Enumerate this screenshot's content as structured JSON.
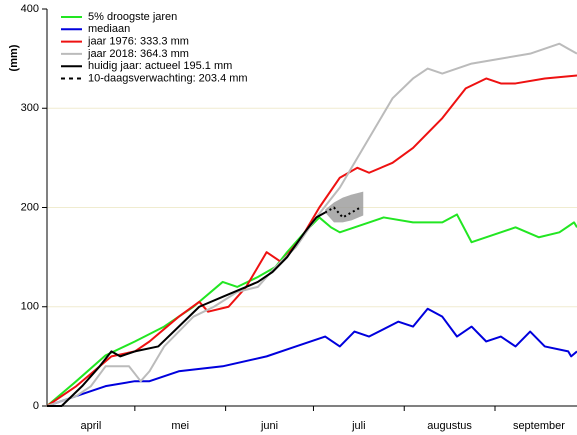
{
  "chart_data": {
    "type": "line",
    "y_label": "(mm)",
    "xlim": [
      0,
      181
    ],
    "ylim": [
      0,
      400
    ],
    "yticks": [
      0,
      100,
      200,
      300,
      400
    ],
    "xticks": [
      {
        "value": 15,
        "label": "april"
      },
      {
        "value": 45.5,
        "label": "mei"
      },
      {
        "value": 76,
        "label": "juni"
      },
      {
        "value": 106.5,
        "label": "juli"
      },
      {
        "value": 137.5,
        "label": "augustus"
      },
      {
        "value": 168,
        "label": "september"
      }
    ],
    "xtick_marks": [
      30,
      61,
      91,
      122,
      153
    ],
    "grid": true,
    "legend": "top-left",
    "series": [
      {
        "name": "5% droogste jaren",
        "color": "#22e622",
        "x": [
          0,
          10,
          20,
          30,
          40,
          50,
          60,
          65,
          72,
          78,
          82,
          88,
          93,
          97,
          100,
          110,
          115,
          125,
          135,
          140,
          145,
          155,
          160,
          168,
          175,
          180,
          181
        ],
        "values": [
          0,
          25,
          51,
          65,
          80,
          100,
          125,
          120,
          130,
          140,
          155,
          175,
          190,
          180,
          175,
          185,
          190,
          185,
          185,
          193,
          165,
          175,
          180,
          170,
          175,
          185,
          180
        ]
      },
      {
        "name": "mediaan",
        "color": "#0000dd",
        "x": [
          0,
          10,
          20,
          30,
          35,
          45,
          60,
          75,
          85,
          95,
          100,
          105,
          110,
          120,
          125,
          130,
          135,
          140,
          145,
          150,
          155,
          160,
          165,
          170,
          178,
          179,
          181
        ],
        "values": [
          0,
          10,
          20,
          25,
          25,
          35,
          40,
          50,
          60,
          70,
          60,
          75,
          70,
          85,
          80,
          98,
          90,
          70,
          80,
          65,
          70,
          60,
          75,
          60,
          55,
          50,
          55
        ]
      },
      {
        "name": "jaar 1976: 333.3 mm",
        "color": "#ee1111",
        "x": [
          0,
          10,
          22,
          30,
          35,
          45,
          52,
          55,
          62,
          68,
          75,
          80,
          87,
          93,
          100,
          106,
          110,
          118,
          125,
          135,
          143,
          150,
          155,
          160,
          170,
          181
        ],
        "values": [
          0,
          20,
          50,
          55,
          65,
          90,
          105,
          95,
          100,
          120,
          155,
          145,
          170,
          200,
          230,
          240,
          235,
          245,
          260,
          290,
          320,
          330,
          325,
          325,
          330,
          333
        ]
      },
      {
        "name": "jaar 2018: 364.3 mm",
        "color": "#bbbbbb",
        "x": [
          0,
          10,
          15,
          20,
          28,
          32,
          35,
          40,
          50,
          57,
          65,
          72,
          78,
          85,
          92,
          100,
          106,
          112,
          118,
          125,
          130,
          135,
          145,
          155,
          165,
          175,
          178,
          181
        ],
        "values": [
          0,
          10,
          20,
          40,
          40,
          25,
          35,
          60,
          90,
          100,
          115,
          120,
          140,
          160,
          190,
          220,
          250,
          280,
          310,
          330,
          340,
          335,
          345,
          350,
          355,
          365,
          360,
          355
        ]
      },
      {
        "name": "huidig jaar: actueel 195.1 mm",
        "color": "#000000",
        "x": [
          0,
          5,
          12,
          18,
          22,
          25,
          30,
          38,
          45,
          52,
          60,
          68,
          72,
          77,
          82,
          88,
          92,
          95
        ],
        "values": [
          0,
          0,
          20,
          40,
          55,
          50,
          55,
          60,
          80,
          100,
          110,
          120,
          125,
          135,
          150,
          175,
          190,
          195
        ]
      },
      {
        "name": "10-daagsverwachting: 203.4 mm",
        "color": "#000000",
        "dash": true,
        "x": [
          95,
          98,
          101,
          104,
          107
        ],
        "values": [
          195,
          200,
          190,
          195,
          200
        ]
      }
    ],
    "band": {
      "color": "#999999",
      "x": [
        95,
        98,
        101,
        104,
        108
      ],
      "lower": [
        195,
        185,
        185,
        187,
        192
      ],
      "upper": [
        198,
        205,
        210,
        213,
        216
      ]
    }
  }
}
